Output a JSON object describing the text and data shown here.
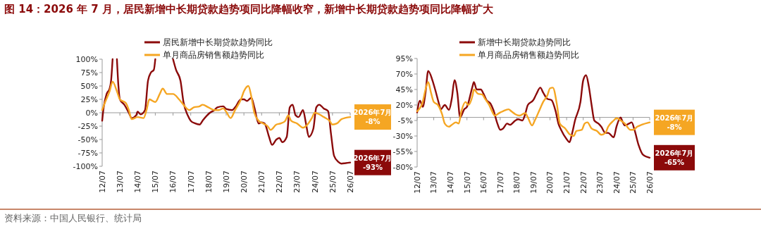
{
  "chart_data": [
    {
      "type": "line",
      "title": "图 14：2026 年 7 月，居民新增中长期贷款趋势项同比降幅收窄，新增中长期贷款趋势项同比降幅扩大",
      "ylim": [
        -100,
        100
      ],
      "yticks": [
        {
          "value": -100,
          "label": "-100%"
        },
        {
          "value": -75,
          "label": "-75%"
        },
        {
          "value": -50,
          "label": "-50%"
        },
        {
          "value": -25,
          "label": "-25%"
        },
        {
          "value": 0,
          "label": "0%"
        },
        {
          "value": 25,
          "label": "25%"
        },
        {
          "value": 50,
          "label": "50%"
        },
        {
          "value": 75,
          "label": "75%"
        },
        {
          "value": 100,
          "label": "100%"
        }
      ],
      "xlim": [
        "2012-07",
        "2026-07"
      ],
      "xticks": [
        {
          "value": "2012-07",
          "label": "12/07"
        },
        {
          "value": "2013-07",
          "label": "13/07"
        },
        {
          "value": "2014-07",
          "label": "14/07"
        },
        {
          "value": "2015-07",
          "label": "15/07"
        },
        {
          "value": "2016-07",
          "label": "16/07"
        },
        {
          "value": "2017-07",
          "label": "17/07"
        },
        {
          "value": "2018-07",
          "label": "18/07"
        },
        {
          "value": "2019-07",
          "label": "19/07"
        },
        {
          "value": "2020-07",
          "label": "20/07"
        },
        {
          "value": "2021-07",
          "label": "21/07"
        },
        {
          "value": "2022-07",
          "label": "22/07"
        },
        {
          "value": "2023-07",
          "label": "23/07"
        },
        {
          "value": "2024-07",
          "label": "24/07"
        },
        {
          "value": "2025-07",
          "label": "25/07"
        },
        {
          "value": "2026-07",
          "label": "26/07"
        }
      ],
      "legend": "top",
      "series": [
        {
          "name": "居民新增中长期贷款趋势同比",
          "color": "#8b0a0a",
          "x": [
            "2012-07",
            "2012-08",
            "2012-10",
            "2012-12",
            "2013-01",
            "2013-02",
            "2013-03",
            "2013-05",
            "2013-06",
            "2013-07",
            "2013-10",
            "2014-01",
            "2014-03",
            "2014-06",
            "2014-07",
            "2014-09",
            "2014-12",
            "2015-02",
            "2015-04",
            "2015-06",
            "2015-07",
            "2016-01",
            "2016-07",
            "2016-09",
            "2016-12",
            "2017-02",
            "2017-05",
            "2017-07",
            "2017-10",
            "2018-01",
            "2018-03",
            "2018-06",
            "2018-08",
            "2018-11",
            "2019-01",
            "2019-05",
            "2019-07",
            "2019-11",
            "2020-01",
            "2020-05",
            "2020-07",
            "2020-09",
            "2020-12",
            "2021-02",
            "2021-05",
            "2021-07",
            "2021-09",
            "2021-12",
            "2022-02",
            "2022-05",
            "2022-07",
            "2022-09",
            "2022-12",
            "2023-02",
            "2023-04",
            "2023-06",
            "2023-08",
            "2023-11",
            "2024-01",
            "2024-03",
            "2024-06",
            "2024-08",
            "2024-10",
            "2025-01",
            "2025-04",
            "2025-06",
            "2025-08",
            "2025-11",
            "2026-01",
            "2026-04",
            "2026-07"
          ],
          "values": [
            -15,
            10,
            35,
            45,
            60,
            100,
            null,
            100,
            50,
            25,
            15,
            0,
            -10,
            -5,
            2,
            -3,
            5,
            60,
            75,
            80,
            100,
            null,
            100,
            80,
            60,
            20,
            -5,
            -15,
            -20,
            -22,
            -15,
            -5,
            0,
            5,
            10,
            12,
            7,
            5,
            10,
            25,
            25,
            22,
            28,
            10,
            -20,
            -18,
            -20,
            -45,
            -60,
            -50,
            -47,
            -55,
            -45,
            10,
            15,
            -5,
            -8,
            5,
            -20,
            -45,
            -30,
            10,
            15,
            8,
            3,
            -40,
            -80,
            -92,
            -95,
            -94,
            -93
          ]
        },
        {
          "name": "单月商品房销售额趋势同比",
          "color": "#f5a623",
          "x": [
            "2012-07",
            "2012-09",
            "2012-12",
            "2013-02",
            "2013-05",
            "2013-07",
            "2013-11",
            "2014-01",
            "2014-03",
            "2014-07",
            "2014-11",
            "2015-01",
            "2015-03",
            "2015-07",
            "2015-10",
            "2015-12",
            "2016-03",
            "2016-07",
            "2016-11",
            "2017-02",
            "2017-06",
            "2017-09",
            "2018-01",
            "2018-03",
            "2018-07",
            "2018-11",
            "2019-02",
            "2019-05",
            "2019-07",
            "2019-10",
            "2020-01",
            "2020-05",
            "2020-07",
            "2020-10",
            "2020-12",
            "2021-02",
            "2021-05",
            "2021-08",
            "2021-11",
            "2022-01",
            "2022-05",
            "2022-08",
            "2022-11",
            "2023-01",
            "2023-03",
            "2023-07",
            "2023-11",
            "2024-01",
            "2024-05",
            "2024-07",
            "2024-10",
            "2025-01",
            "2025-05",
            "2025-07",
            "2025-10",
            "2026-01",
            "2026-07"
          ],
          "values": [
            5,
            20,
            40,
            58,
            40,
            25,
            18,
            5,
            -12,
            -8,
            -10,
            5,
            25,
            20,
            35,
            45,
            35,
            35,
            25,
            15,
            5,
            10,
            12,
            15,
            10,
            5,
            5,
            8,
            2,
            -10,
            5,
            25,
            40,
            50,
            30,
            0,
            -15,
            -20,
            -25,
            -32,
            -22,
            -20,
            -15,
            -5,
            -15,
            -20,
            -28,
            -25,
            -10,
            0,
            -3,
            -8,
            -15,
            -22,
            -20,
            -12,
            -8
          ]
        }
      ],
      "annotations": [
        {
          "text": "2026年7月\n-8%",
          "x": "2026-07",
          "y": -8
        },
        {
          "text": "2026年7月\n-93%",
          "x": "2026-07",
          "y": -93
        },
        "资料来源：中国人民银行、统计局"
      ]
    },
    {
      "type": "line",
      "ylim": [
        -80,
        95
      ],
      "yticks": [
        {
          "value": -80,
          "label": "-80%"
        },
        {
          "value": -55,
          "label": "-55%"
        },
        {
          "value": -30,
          "label": "-30%"
        },
        {
          "value": -5,
          "label": "-5%"
        },
        {
          "value": 20,
          "label": "20%"
        },
        {
          "value": 45,
          "label": "45%"
        },
        {
          "value": 70,
          "label": "70%"
        },
        {
          "value": 95,
          "label": "95%"
        }
      ],
      "xlim": [
        "2012-07",
        "2026-07"
      ],
      "xticks": [
        {
          "value": "2012-07",
          "label": "12/07"
        },
        {
          "value": "2013-07",
          "label": "13/07"
        },
        {
          "value": "2014-07",
          "label": "14/07"
        },
        {
          "value": "2015-07",
          "label": "15/07"
        },
        {
          "value": "2016-07",
          "label": "16/07"
        },
        {
          "value": "2017-07",
          "label": "17/07"
        },
        {
          "value": "2018-07",
          "label": "18/07"
        },
        {
          "value": "2019-07",
          "label": "19/07"
        },
        {
          "value": "2020-07",
          "label": "20/07"
        },
        {
          "value": "2021-07",
          "label": "21/07"
        },
        {
          "value": "2022-07",
          "label": "22/07"
        },
        {
          "value": "2023-07",
          "label": "23/07"
        },
        {
          "value": "2024-07",
          "label": "24/07"
        },
        {
          "value": "2025-07",
          "label": "25/07"
        },
        {
          "value": "2026-07",
          "label": "26/07"
        }
      ],
      "legend": "top",
      "series": [
        {
          "name": "新增中长期贷款趋势同比",
          "color": "#8b0a0a",
          "x": [
            "2012-07",
            "2012-09",
            "2012-11",
            "2013-01",
            "2013-03",
            "2013-06",
            "2013-08",
            "2013-11",
            "2013-12",
            "2014-03",
            "2014-06",
            "2014-08",
            "2014-10",
            "2014-12",
            "2015-02",
            "2015-05",
            "2015-07",
            "2015-11",
            "2015-12",
            "2016-02",
            "2016-05",
            "2016-07",
            "2016-09",
            "2016-12",
            "2017-02",
            "2017-05",
            "2017-07",
            "2017-09",
            "2017-12",
            "2018-02",
            "2018-06",
            "2018-08",
            "2018-11",
            "2019-01",
            "2019-03",
            "2019-07",
            "2019-09",
            "2019-12",
            "2020-02",
            "2020-05",
            "2020-08",
            "2020-11",
            "2021-01",
            "2021-03",
            "2021-07",
            "2021-09",
            "2021-11",
            "2022-01",
            "2022-05",
            "2022-07",
            "2022-09",
            "2022-11",
            "2023-01",
            "2023-03",
            "2023-06",
            "2023-08",
            "2023-11",
            "2024-01",
            "2024-05",
            "2024-07",
            "2024-10",
            "2024-11",
            "2025-01",
            "2025-04",
            "2025-06",
            "2025-08",
            "2025-11",
            "2026-02",
            "2026-07"
          ],
          "values": [
            8,
            27,
            17,
            40,
            75,
            60,
            45,
            20,
            13,
            20,
            12,
            30,
            60,
            40,
            0,
            13,
            17,
            50,
            57,
            45,
            45,
            38,
            28,
            22,
            12,
            -10,
            -20,
            -18,
            -10,
            -12,
            -5,
            -3,
            -5,
            5,
            20,
            28,
            37,
            48,
            40,
            30,
            28,
            10,
            -10,
            -20,
            -35,
            -40,
            -25,
            -5,
            25,
            60,
            68,
            50,
            20,
            -5,
            -10,
            -15,
            -25,
            -25,
            -32,
            -15,
            0,
            -5,
            -13,
            -10,
            -8,
            -20,
            -45,
            -60,
            -65
          ]
        },
        {
          "name": "单月商品房销售额趋势同比",
          "color": "#f5a623",
          "x": [
            "2012-07",
            "2012-11",
            "2013-01",
            "2013-03",
            "2013-05",
            "2013-07",
            "2013-10",
            "2014-01",
            "2014-03",
            "2014-06",
            "2014-08",
            "2014-11",
            "2015-01",
            "2015-03",
            "2015-06",
            "2015-08",
            "2015-11",
            "2015-12",
            "2016-03",
            "2016-06",
            "2016-08",
            "2016-11",
            "2017-01",
            "2017-03",
            "2017-07",
            "2017-09",
            "2018-01",
            "2018-03",
            "2018-06",
            "2018-09",
            "2019-01",
            "2019-03",
            "2019-06",
            "2019-08",
            "2019-12",
            "2020-02",
            "2020-05",
            "2020-07",
            "2020-09",
            "2020-12",
            "2021-02",
            "2021-06",
            "2021-09",
            "2021-12",
            "2022-02",
            "2022-06",
            "2022-08",
            "2022-10",
            "2023-01",
            "2023-05",
            "2023-08",
            "2023-11",
            "2024-01",
            "2024-05",
            "2024-07",
            "2024-10",
            "2025-01",
            "2025-05",
            "2025-07",
            "2025-10",
            "2026-01",
            "2026-07"
          ],
          "values": [
            10,
            25,
            45,
            57,
            40,
            25,
            20,
            5,
            -10,
            -15,
            -12,
            -8,
            -10,
            10,
            25,
            20,
            35,
            45,
            38,
            37,
            30,
            20,
            10,
            3,
            8,
            10,
            13,
            10,
            5,
            3,
            7,
            0,
            -13,
            -5,
            15,
            25,
            35,
            47,
            48,
            20,
            -10,
            -18,
            -27,
            -30,
            -22,
            -20,
            -10,
            -8,
            -18,
            -22,
            -28,
            -25,
            -15,
            -5,
            -1,
            -5,
            -10,
            -20,
            -20,
            -15,
            -12,
            -8
          ]
        }
      ],
      "annotations": [
        {
          "text": "2026年7月\n-8%",
          "x": "2026-07",
          "y": -8
        },
        {
          "text": "2026年7月\n-65%",
          "x": "2026-07",
          "y": -65
        }
      ]
    }
  ]
}
